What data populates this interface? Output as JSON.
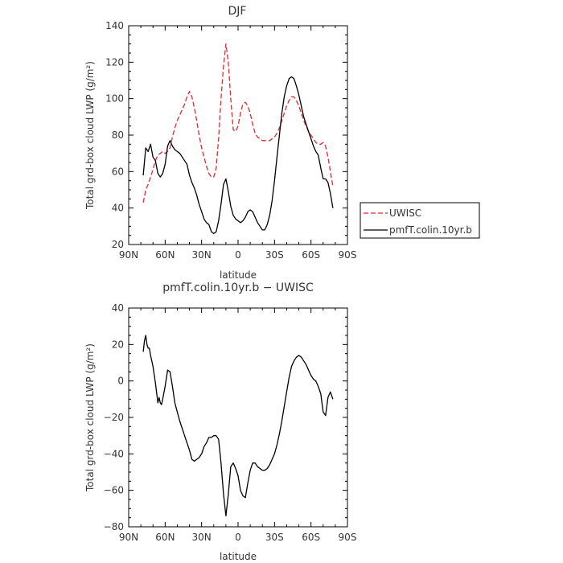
{
  "chart_data": [
    {
      "type": "line",
      "title": "DJF",
      "xlabel": "latitude",
      "ylabel": "Total grd-box cloud LWP (g/m²)",
      "xlim": [
        90,
        -90
      ],
      "ylim": [
        20,
        140
      ],
      "xticks": [
        90,
        60,
        30,
        0,
        -30,
        -60,
        -90
      ],
      "xtick_labels": [
        "90N",
        "60N",
        "30N",
        "0",
        "30S",
        "60S",
        "90S"
      ],
      "yticks": [
        20,
        40,
        60,
        80,
        100,
        120,
        140
      ],
      "ytick_labels": [
        "20",
        "40",
        "60",
        "80",
        "100",
        "120",
        "140"
      ],
      "grid": false,
      "legend_position": "outside-right",
      "series": [
        {
          "name": "UWISC",
          "color": "#e8252e",
          "dash": "dashed",
          "x": [
            78,
            76,
            74,
            72,
            70,
            68,
            66,
            64,
            62,
            60,
            58,
            56,
            54,
            52,
            50,
            48,
            46,
            44,
            42,
            40,
            38,
            36,
            34,
            32,
            30,
            28,
            26,
            24,
            22,
            20,
            18,
            16,
            14,
            12,
            10,
            8,
            6,
            4,
            2,
            0,
            -2,
            -4,
            -6,
            -8,
            -10,
            -12,
            -14,
            -16,
            -18,
            -20,
            -22,
            -24,
            -26,
            -28,
            -30,
            -32,
            -34,
            -36,
            -38,
            -40,
            -42,
            -44,
            -46,
            -48,
            -50,
            -52,
            -54,
            -56,
            -58,
            -60,
            -62,
            -64,
            -66,
            -68,
            -70,
            -72,
            -74,
            -76,
            -78
          ],
          "values": [
            43,
            50,
            53,
            57,
            61,
            66,
            69,
            70,
            71,
            70,
            71,
            73,
            79,
            84,
            88,
            91,
            94,
            97,
            101,
            104,
            101,
            95,
            88,
            80,
            73,
            68,
            63,
            59,
            57,
            57,
            62,
            78,
            100,
            118,
            130,
            120,
            100,
            83,
            82,
            85,
            92,
            97,
            98,
            96,
            92,
            86,
            81,
            79,
            78,
            77,
            77,
            77,
            77,
            78,
            79,
            81,
            84,
            88,
            92,
            96,
            99,
            101,
            101,
            99,
            96,
            92,
            88,
            85,
            82,
            80,
            78,
            76,
            75,
            75,
            76,
            74,
            68,
            60,
            52
          ]
        },
        {
          "name": "pmfT.colin.10yr.b",
          "color": "#000000",
          "dash": "solid",
          "x": [
            78,
            76,
            74,
            72,
            70,
            68,
            66,
            64,
            62,
            60,
            58,
            56,
            54,
            52,
            50,
            48,
            46,
            44,
            42,
            40,
            38,
            36,
            34,
            32,
            30,
            28,
            26,
            24,
            22,
            20,
            18,
            16,
            14,
            12,
            10,
            8,
            6,
            4,
            2,
            0,
            -2,
            -4,
            -6,
            -8,
            -10,
            -12,
            -14,
            -16,
            -18,
            -20,
            -22,
            -24,
            -26,
            -28,
            -30,
            -32,
            -34,
            -36,
            -38,
            -40,
            -42,
            -44,
            -46,
            -48,
            -50,
            -52,
            -54,
            -56,
            -58,
            -60,
            -62,
            -64,
            -66,
            -68,
            -70,
            -72,
            -74,
            -76,
            -78
          ],
          "values": [
            58,
            73,
            71,
            75,
            68,
            66,
            59,
            57,
            59,
            64,
            74,
            77,
            74,
            72,
            71,
            70,
            68,
            66,
            64,
            58,
            54,
            51,
            47,
            42,
            38,
            34,
            32,
            31,
            27,
            26,
            27,
            33,
            42,
            53,
            56,
            49,
            41,
            36,
            34,
            33,
            32,
            33,
            35,
            38,
            39,
            38,
            35,
            32,
            30,
            28,
            28,
            31,
            36,
            44,
            55,
            68,
            80,
            92,
            101,
            107,
            111,
            112,
            111,
            107,
            102,
            96,
            90,
            86,
            82,
            78,
            74,
            71,
            69,
            62,
            56,
            56,
            54,
            48,
            40
          ]
        }
      ]
    },
    {
      "type": "line",
      "title": "pmfT.colin.10yr.b − UWISC",
      "xlabel": "latitude",
      "ylabel": "Total grd-box cloud LWP (g/m²)",
      "xlim": [
        90,
        -90
      ],
      "ylim": [
        -80,
        40
      ],
      "xticks": [
        90,
        60,
        30,
        0,
        -30,
        -60,
        -90
      ],
      "xtick_labels": [
        "90N",
        "60N",
        "30N",
        "0",
        "30S",
        "60S",
        "90S"
      ],
      "yticks": [
        -80,
        -60,
        -40,
        -20,
        0,
        20,
        40
      ],
      "ytick_labels": [
        "−80",
        "−60",
        "−40",
        "−20",
        "0",
        "20",
        "40"
      ],
      "grid": false,
      "series": [
        {
          "color": "#000000",
          "dash": "solid",
          "x": [
            78,
            77,
            76,
            75,
            74,
            73,
            72,
            70,
            68,
            66,
            65,
            64,
            63,
            62,
            60,
            58,
            56,
            54,
            52,
            50,
            48,
            46,
            44,
            42,
            40,
            38,
            36,
            34,
            32,
            30,
            28,
            26,
            24,
            22,
            20,
            18,
            16,
            14,
            12,
            10,
            8,
            6,
            4,
            2,
            0,
            -2,
            -4,
            -6,
            -8,
            -10,
            -12,
            -14,
            -16,
            -18,
            -20,
            -22,
            -24,
            -26,
            -28,
            -30,
            -32,
            -34,
            -36,
            -38,
            -40,
            -42,
            -44,
            -46,
            -48,
            -50,
            -52,
            -54,
            -56,
            -58,
            -60,
            -62,
            -64,
            -66,
            -68,
            -70,
            -72,
            -74,
            -76,
            -78
          ],
          "values": [
            16,
            22,
            25,
            20,
            18,
            18,
            14,
            8,
            -1,
            -12,
            -9,
            -12,
            -13,
            -10,
            -3,
            6,
            5,
            -3,
            -12,
            -17,
            -22,
            -26,
            -30,
            -34,
            -38,
            -43,
            -44,
            -43,
            -42,
            -40,
            -36,
            -34,
            -31,
            -31,
            -30,
            -30,
            -32,
            -45,
            -62,
            -74,
            -62,
            -47,
            -45,
            -48,
            -52,
            -60,
            -63,
            -64,
            -56,
            -49,
            -45,
            -45,
            -47,
            -48,
            -49,
            -49,
            -48,
            -46,
            -43,
            -40,
            -35,
            -29,
            -22,
            -14,
            -6,
            2,
            8,
            11,
            13,
            14,
            13,
            11,
            9,
            6,
            3,
            1,
            0,
            -3,
            -7,
            -17,
            -19,
            -9,
            -6,
            -10
          ]
        }
      ]
    }
  ]
}
